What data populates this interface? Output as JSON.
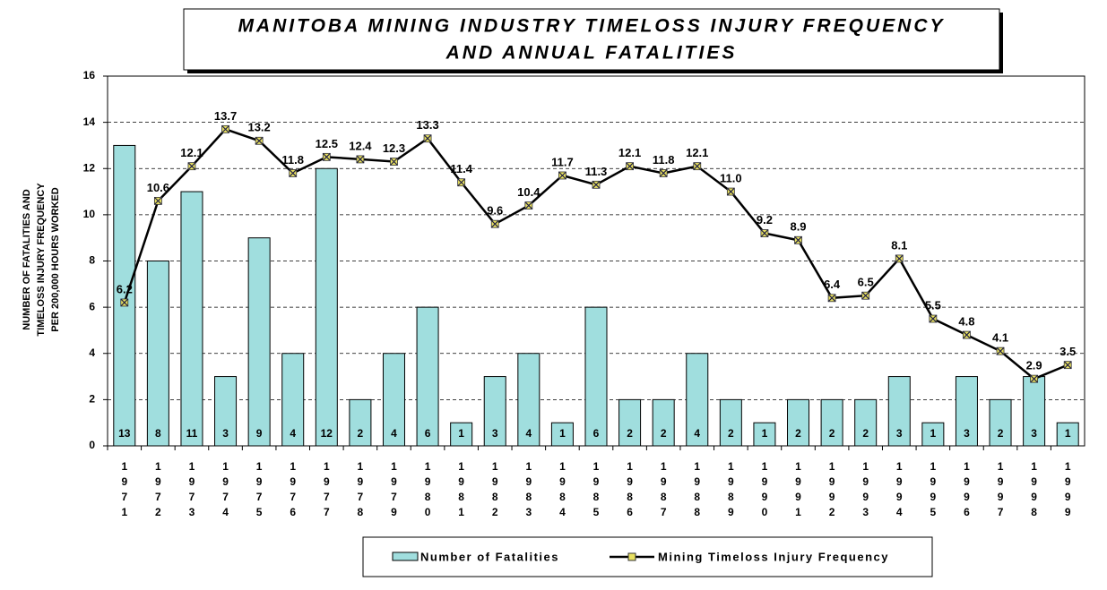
{
  "chart_data": {
    "type": "bar_line",
    "title": [
      "MANITOBA MINING INDUSTRY TIMELOSS INJURY FREQUENCY",
      "AND ANNUAL FATALITIES"
    ],
    "y_axis_label": [
      "NUMBER OF FATALITIES AND",
      "TIMELOSS INJURY FREQUENCY",
      "PER 200,000 HOURS WORKED"
    ],
    "categories": [
      "1971",
      "1972",
      "1973",
      "1974",
      "1975",
      "1976",
      "1977",
      "1978",
      "1979",
      "1980",
      "1981",
      "1982",
      "1983",
      "1984",
      "1985",
      "1986",
      "1987",
      "1988",
      "1989",
      "1990",
      "1991",
      "1992",
      "1993",
      "1994",
      "1995",
      "1996",
      "1997",
      "1998",
      "1999"
    ],
    "series": [
      {
        "name": "Number of Fatalities",
        "type": "bar",
        "color": "#a0dede",
        "values": [
          13,
          8,
          11,
          3,
          9,
          4,
          12,
          2,
          4,
          6,
          1,
          3,
          4,
          1,
          6,
          2,
          2,
          4,
          2,
          1,
          2,
          2,
          2,
          3,
          1,
          3,
          2,
          3,
          1
        ]
      },
      {
        "name": "Mining Timeloss Injury Frequency",
        "type": "line",
        "color": "#000000",
        "marker_color": "#e8e060",
        "values": [
          6.2,
          10.6,
          12.1,
          13.7,
          13.2,
          11.8,
          12.5,
          12.4,
          12.3,
          13.3,
          11.4,
          9.6,
          10.4,
          11.7,
          11.3,
          12.1,
          11.8,
          12.1,
          11.0,
          9.2,
          8.9,
          6.4,
          6.5,
          8.1,
          5.5,
          4.8,
          4.1,
          2.9,
          3.5
        ],
        "value_labels": [
          "6.2",
          "10.6",
          "12.1",
          "13.7",
          "13.2",
          "11.8",
          "12.5",
          "12.4",
          "12.3",
          "13.3",
          "11.4",
          "9.6",
          "10.4",
          "11.7",
          "11.3",
          "12.1",
          "11.8",
          "12.1",
          "11.0",
          "9.2",
          "8.9",
          "6.4",
          "6.5",
          "8.1",
          "5.5",
          "4.8",
          "4.1",
          "2.9",
          "3.5"
        ]
      }
    ],
    "ylim": [
      0,
      16
    ],
    "yticks": [
      0,
      2,
      4,
      6,
      8,
      10,
      12,
      14,
      16
    ],
    "grid": true,
    "legend": "bottom"
  }
}
